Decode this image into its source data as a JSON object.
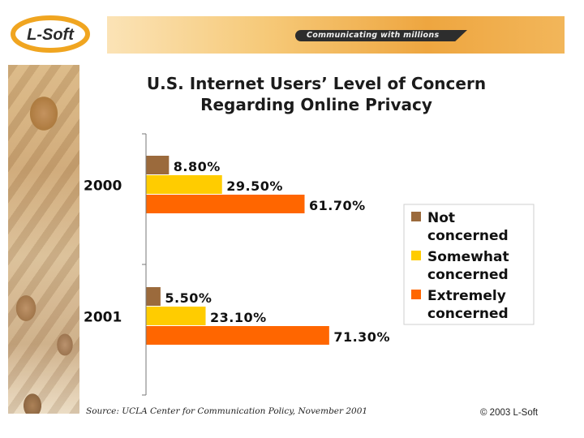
{
  "header": {
    "logo_text": "L-Soft",
    "tagline": "Communicating with millions"
  },
  "chart_data": {
    "type": "bar",
    "orientation": "horizontal",
    "title": "U.S. Internet Users' Level of Concern Regarding Online Privacy",
    "title_lines": [
      "U.S. Internet Users’ Level of Concern",
      "Regarding Online Privacy"
    ],
    "categories": [
      "2000",
      "2001"
    ],
    "series": [
      {
        "name": "Not concerned",
        "legend_lines": [
          "Not",
          "concerned"
        ],
        "color": "#9b6a3c",
        "values": [
          8.8,
          5.5
        ],
        "labels": [
          "8.80%",
          "5.50%"
        ]
      },
      {
        "name": "Somewhat concerned",
        "legend_lines": [
          "Somewhat",
          "concerned"
        ],
        "color": "#ffcc00",
        "values": [
          29.5,
          23.1
        ],
        "labels": [
          "29.50%",
          "23.10%"
        ]
      },
      {
        "name": "Extremely concerned",
        "legend_lines": [
          "Extremely",
          "concerned"
        ],
        "color": "#ff6600",
        "values": [
          61.7,
          71.3
        ],
        "labels": [
          "61.70%",
          "71.30%"
        ]
      }
    ],
    "xlim": [
      0,
      100
    ],
    "grid": false,
    "legend_position": "right"
  },
  "footer": {
    "source": "Source: UCLA Center for Communication Policy, November 2001",
    "copyright": "© 2003 L-Soft"
  }
}
